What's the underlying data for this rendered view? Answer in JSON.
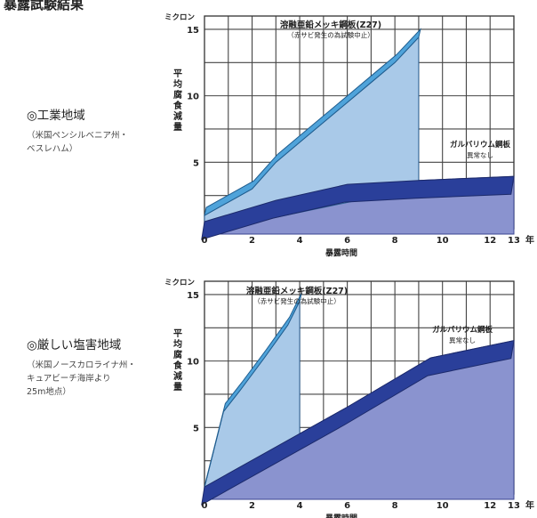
{
  "page": {
    "heading": "暴露試験結果"
  },
  "chart_data": [
    {
      "type": "area",
      "region": "◎工業地域",
      "region_detail": "（米国ペンシルベニア州・\nベスレハム）",
      "unit": "ミクロン",
      "ylabel": "平均腐食減量",
      "xlabel": "暴露時間",
      "x_unit": "年",
      "xlim": [
        0,
        13
      ],
      "ylim": [
        0,
        16
      ],
      "x_ticks": [
        "0",
        "2",
        "4",
        "6",
        "8",
        "10",
        "12",
        "13"
      ],
      "y_ticks": [
        "5",
        "10",
        "15"
      ],
      "grid": true,
      "series": [
        {
          "name": "溶融亜鉛メッキ鋼板(Z27)",
          "note": "（赤サビ発生の為試験中止）",
          "x": [
            0,
            2,
            3,
            4,
            5,
            6,
            7,
            8,
            9
          ],
          "y": [
            1,
            3,
            5,
            6.5,
            8,
            9.5,
            11,
            12.5,
            14.4
          ]
        },
        {
          "name": "ガルバリウム鋼板",
          "note": "異常なし",
          "x": [
            0,
            3,
            6,
            9,
            13
          ],
          "y": [
            0,
            1.6,
            2.8,
            3.1,
            3.4
          ]
        }
      ]
    },
    {
      "type": "area",
      "region": "◎厳しい塩害地域",
      "region_detail": "（米国ノースカロライナ州・\nキュアビーチ海岸より\n25m地点）",
      "unit": "ミクロン",
      "ylabel": "平均腐食減量",
      "xlabel": "暴露時間",
      "x_unit": "年",
      "xlim": [
        0,
        13
      ],
      "ylim": [
        0,
        16
      ],
      "x_ticks": [
        "0",
        "2",
        "4",
        "6",
        "8",
        "10",
        "12",
        "13"
      ],
      "y_ticks": [
        "5",
        "10",
        "15"
      ],
      "grid": true,
      "series": [
        {
          "name": "溶融亜鉛メッキ鋼板(Z27)",
          "note": "（赤サビ発生の為試験中止）",
          "x": [
            0,
            0.8,
            1.5,
            2.5,
            3.5,
            4
          ],
          "y": [
            0.5,
            6.2,
            7.8,
            10.2,
            12.7,
            14.5
          ]
        },
        {
          "name": "ガルバリウム鋼板",
          "note": "異常なし",
          "x": [
            0,
            3,
            6,
            9.5,
            13
          ],
          "y": [
            0,
            3,
            6,
            9.7,
            11
          ]
        }
      ]
    }
  ]
}
